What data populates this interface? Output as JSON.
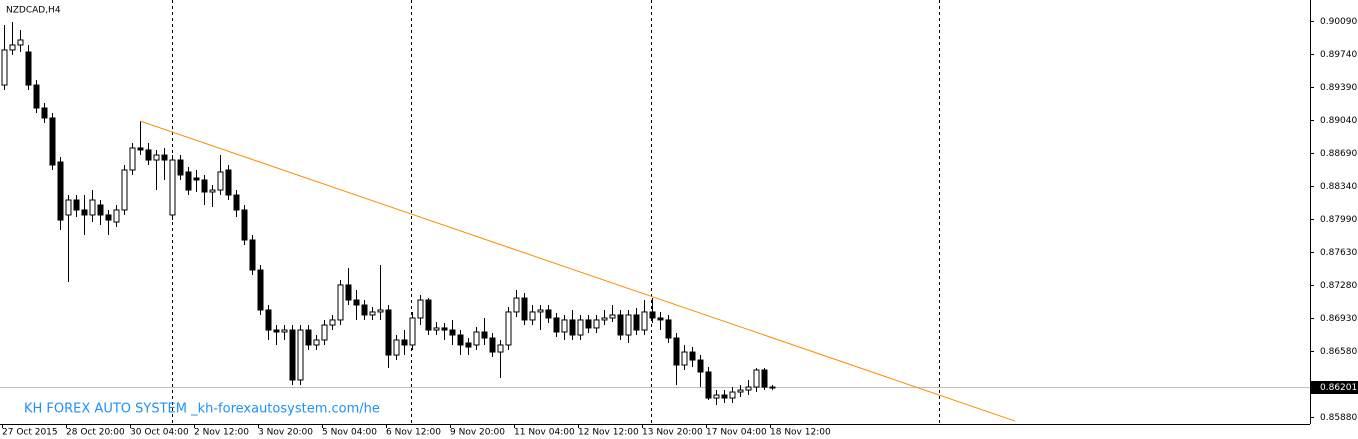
{
  "chart_data": {
    "type": "candlestick",
    "title": "NZDCAD,H4",
    "annotation": "KH FOREX AUTO SYSTEM _kh-forexautosystem.com/he",
    "categories": [
      "27 Oct 2015",
      null,
      null,
      null,
      null,
      null,
      null,
      null,
      "28 Oct 20:00",
      null,
      null,
      null,
      null,
      null,
      null,
      null,
      "30 Oct 04:00",
      null,
      null,
      null,
      null,
      null,
      null,
      null,
      "2 Nov 12:00",
      null,
      null,
      null,
      null,
      null,
      null,
      null,
      "3 Nov 20:00",
      null,
      null,
      null,
      null,
      null,
      null,
      null,
      "5 Nov 04:00",
      null,
      null,
      null,
      null,
      null,
      null,
      null,
      "6 Nov 12:00",
      null,
      null,
      null,
      null,
      null,
      null,
      null,
      "9 Nov 20:00",
      null,
      null,
      null,
      null,
      null,
      null,
      null,
      "11 Nov 04:00",
      null,
      null,
      null,
      null,
      null,
      null,
      null,
      "12 Nov 12:00",
      null,
      null,
      null,
      null,
      null,
      null,
      null,
      "13 Nov 20:00",
      null,
      null,
      null,
      null,
      null,
      null,
      null,
      "17 Nov 04:00",
      null,
      null,
      null,
      null,
      null,
      null,
      null,
      "18 Nov 12:00"
    ],
    "open": [
      0.89409,
      0.89782,
      0.89835,
      0.8976,
      0.89409,
      0.89165,
      0.89059,
      0.88591,
      0.88028,
      0.88187,
      0.88081,
      0.88028,
      0.88134,
      0.88028,
      0.87953,
      0.88081,
      0.88506,
      0.8874,
      0.88719,
      0.88612,
      0.88665,
      0.88028,
      0.88612,
      0.88485,
      0.88421,
      0.884,
      0.88272,
      0.88293,
      0.88506,
      0.8824,
      0.88081,
      0.87762,
      0.87443,
      0.87018,
      0.86805,
      0.86784,
      0.86805,
      0.86274,
      0.86805,
      0.86646,
      0.86699,
      0.86858,
      0.86912,
      0.87284,
      0.87124,
      0.87071,
      0.86965,
      0.86997,
      0.87018,
      0.86539,
      0.86699,
      0.86646,
      0.86933,
      0.87124,
      0.86805,
      0.86827,
      0.86805,
      0.86752,
      0.86667,
      0.86646,
      0.86784,
      0.8672,
      0.86571,
      0.86646,
      0.86997,
      0.87145,
      0.86912,
      0.86997,
      0.87018,
      0.86933,
      0.86784,
      0.86912,
      0.86752,
      0.86912,
      0.86827,
      0.86912,
      0.86933,
      0.86965,
      0.86752,
      0.86965,
      0.86805,
      0.86997,
      0.86933,
      0.86912,
      0.8672,
      0.86433,
      0.86571,
      0.86486,
      0.86359,
      0.86082,
      0.86114,
      0.86082,
      0.86146,
      0.86167,
      0.86199,
      0.8638,
      0.86199
    ],
    "high": [
      0.90047,
      0.90079,
      0.89994,
      0.89835,
      0.89463,
      0.89218,
      0.89112,
      0.88644,
      0.8824,
      0.8824,
      0.8824,
      0.88293,
      0.88187,
      0.88081,
      0.88134,
      0.88559,
      0.88793,
      0.89027,
      0.88793,
      0.88719,
      0.8874,
      0.88665,
      0.88665,
      0.88538,
      0.88506,
      0.88453,
      0.88347,
      0.88665,
      0.88559,
      0.88293,
      0.88134,
      0.87815,
      0.87496,
      0.87071,
      0.86858,
      0.86858,
      0.86858,
      0.86858,
      0.86858,
      0.86752,
      0.86912,
      0.86965,
      0.87337,
      0.87464,
      0.8723,
      0.87124,
      0.8705,
      0.87496,
      0.87071,
      0.86752,
      0.86805,
      0.86997,
      0.87177,
      0.87145,
      0.8689,
      0.8688,
      0.86912,
      0.86805,
      0.8672,
      0.86837,
      0.86933,
      0.86773,
      0.86699,
      0.8705,
      0.8723,
      0.87198,
      0.87071,
      0.87071,
      0.87071,
      0.86986,
      0.86965,
      0.87018,
      0.86965,
      0.86965,
      0.86965,
      0.87018,
      0.87071,
      0.87018,
      0.87018,
      0.87039,
      0.87124,
      0.87145,
      0.86997,
      0.86965,
      0.86773,
      0.86646,
      0.86624,
      0.86539,
      0.86412,
      0.86167,
      0.86167,
      0.86199,
      0.8622,
      0.86274,
      0.86401,
      0.86401,
      0.8622
    ],
    "low": [
      0.89356,
      0.89728,
      0.8976,
      0.89356,
      0.89112,
      0.89006,
      0.88506,
      0.87868,
      0.87316,
      0.88006,
      0.87815,
      0.87953,
      0.87921,
      0.87815,
      0.879,
      0.88028,
      0.88453,
      0.88665,
      0.88559,
      0.88293,
      0.884,
      0.87974,
      0.884,
      0.8824,
      0.88272,
      0.88134,
      0.88113,
      0.8824,
      0.88187,
      0.88006,
      0.87709,
      0.8739,
      0.86965,
      0.86699,
      0.86646,
      0.86699,
      0.8622,
      0.8622,
      0.86593,
      0.86593,
      0.86646,
      0.86805,
      0.86858,
      0.87071,
      0.86912,
      0.86912,
      0.86912,
      0.86912,
      0.86401,
      0.86486,
      0.86539,
      0.86593,
      0.86858,
      0.86752,
      0.86752,
      0.86699,
      0.86646,
      0.86539,
      0.86539,
      0.86593,
      0.86646,
      0.86518,
      0.86295,
      0.86593,
      0.86943,
      0.86858,
      0.86858,
      0.86805,
      0.8688,
      0.86731,
      0.86699,
      0.86699,
      0.86699,
      0.86773,
      0.86773,
      0.86858,
      0.8689,
      0.86699,
      0.86667,
      0.86752,
      0.86752,
      0.8688,
      0.86805,
      0.86667,
      0.8622,
      0.8638,
      0.86412,
      0.86199,
      0.86061,
      0.86008,
      0.86029,
      0.86029,
      0.86093,
      0.86114,
      0.86146,
      0.86167,
      0.86167
    ],
    "close": [
      0.89782,
      0.89835,
      0.89888,
      0.89409,
      0.89165,
      0.89059,
      0.88559,
      0.87974,
      0.88187,
      0.88081,
      0.88028,
      0.88187,
      0.88028,
      0.87974,
      0.88081,
      0.88506,
      0.8874,
      0.88719,
      0.88612,
      0.88665,
      0.88612,
      0.88612,
      0.88453,
      0.88293,
      0.884,
      0.88272,
      0.88293,
      0.88485,
      0.8824,
      0.88081,
      0.87762,
      0.87443,
      0.87018,
      0.86805,
      0.86784,
      0.86805,
      0.86274,
      0.86805,
      0.86646,
      0.86699,
      0.86858,
      0.86912,
      0.87284,
      0.87124,
      0.87071,
      0.86965,
      0.86997,
      0.87018,
      0.86539,
      0.86699,
      0.86646,
      0.86933,
      0.87124,
      0.86805,
      0.86827,
      0.86805,
      0.86752,
      0.86646,
      0.86624,
      0.86784,
      0.8672,
      0.86571,
      0.86646,
      0.86997,
      0.87145,
      0.86912,
      0.86997,
      0.87018,
      0.86933,
      0.86784,
      0.86912,
      0.86752,
      0.86912,
      0.86827,
      0.86912,
      0.86933,
      0.86965,
      0.86752,
      0.86965,
      0.86805,
      0.86997,
      0.86933,
      0.86912,
      0.8672,
      0.86433,
      0.86571,
      0.86486,
      0.86359,
      0.86082,
      0.86114,
      0.86082,
      0.86146,
      0.86167,
      0.86199,
      0.8638,
      0.86199,
      0.86199
    ],
    "up_color": "#ffffff",
    "down_color": "#000000",
    "wick_color": "#000000",
    "trendline": {
      "values": [
        0.89027,
        0.85837
      ],
      "color": "#ff8c00"
    },
    "last_price": 0.86201,
    "ylim": [
      0.85806,
      0.90313
    ],
    "yticks": [
      {
        "value": 0.9009,
        "label": "0.90090"
      },
      {
        "value": 0.8974,
        "label": "0.89740"
      },
      {
        "value": 0.8939,
        "label": "0.89390"
      },
      {
        "value": 0.8904,
        "label": "0.89040"
      },
      {
        "value": 0.8869,
        "label": "0.88690"
      },
      {
        "value": 0.8834,
        "label": "0.88340"
      },
      {
        "value": 0.8799,
        "label": "0.87990"
      },
      {
        "value": 0.8763,
        "label": "0.87630"
      },
      {
        "value": 0.8728,
        "label": "0.87280"
      },
      {
        "value": 0.8693,
        "label": "0.86930"
      },
      {
        "value": 0.8658,
        "label": "0.86580"
      },
      {
        "value": 0.8588,
        "label": "0.85880"
      }
    ],
    "grid": false
  }
}
